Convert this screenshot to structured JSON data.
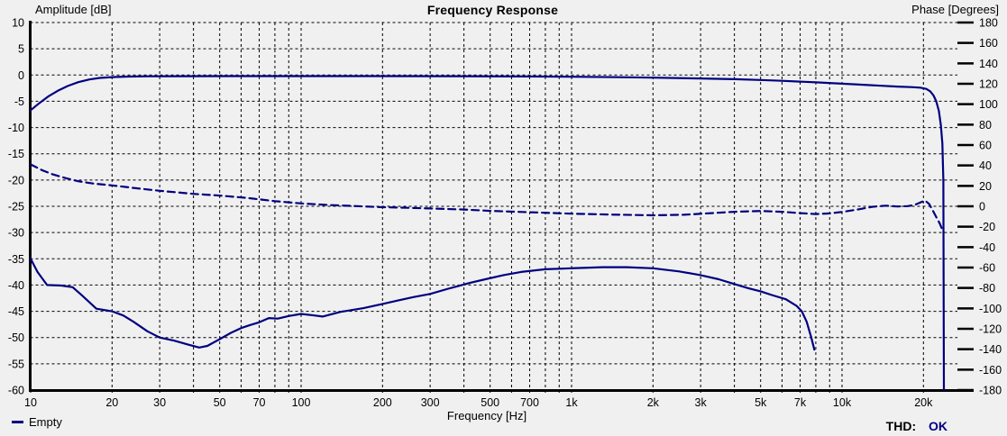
{
  "window": {
    "background": "#f0f0f0"
  },
  "chart": {
    "title": "Frequency Response",
    "colors": {
      "curve": "#000080",
      "grid": "#000000",
      "axis": "#000000",
      "text": "#000000",
      "background": "#f0f0f0"
    },
    "left_axis": {
      "title": "Amplitude [dB]",
      "ticks": [
        10,
        5,
        0,
        -5,
        -10,
        -15,
        -20,
        -25,
        -30,
        -35,
        -40,
        -45,
        -50,
        -55,
        -60
      ]
    },
    "right_axis": {
      "title": "Phase [Degrees]",
      "ticks": [
        180,
        160,
        140,
        120,
        100,
        80,
        60,
        40,
        20,
        0,
        -20,
        -40,
        -60,
        -80,
        -100,
        -120,
        -140,
        -160,
        -180
      ]
    },
    "x_axis": {
      "title": "Frequency [Hz]",
      "labeled_ticks": [
        {
          "value": 10,
          "label": "10"
        },
        {
          "value": 20,
          "label": "20"
        },
        {
          "value": 30,
          "label": "30"
        },
        {
          "value": 50,
          "label": "50"
        },
        {
          "value": 70,
          "label": "70"
        },
        {
          "value": 100,
          "label": "100"
        },
        {
          "value": 200,
          "label": "200"
        },
        {
          "value": 300,
          "label": "300"
        },
        {
          "value": 500,
          "label": "500"
        },
        {
          "value": 700,
          "label": "700"
        },
        {
          "value": 1000,
          "label": "1k"
        },
        {
          "value": 2000,
          "label": "2k"
        },
        {
          "value": 3000,
          "label": "3k"
        },
        {
          "value": 5000,
          "label": "5k"
        },
        {
          "value": 7000,
          "label": "7k"
        },
        {
          "value": 10000,
          "label": "10k"
        },
        {
          "value": 20000,
          "label": "20k"
        }
      ],
      "gridlines": [
        10,
        20,
        30,
        40,
        50,
        60,
        70,
        80,
        90,
        100,
        200,
        300,
        400,
        500,
        600,
        700,
        800,
        900,
        1000,
        2000,
        3000,
        4000,
        5000,
        6000,
        7000,
        8000,
        9000,
        10000,
        20000
      ]
    }
  },
  "legend": {
    "series_label": "Empty"
  },
  "footer": {
    "thd_label": "THD:",
    "thd_value": "OK",
    "thd_value_color": "#000080"
  },
  "chart_data": {
    "type": "line",
    "title": "Frequency Response",
    "x_scale": "log",
    "x_range": [
      10,
      26000
    ],
    "left_axis_range": [
      -60,
      10
    ],
    "right_axis_range": [
      -180,
      180
    ],
    "grid": true,
    "legend_position": "bottom-left",
    "series": [
      {
        "name": "amplitude",
        "axis": "left",
        "style": "solid",
        "unit": "dB",
        "points": [
          [
            10,
            -6.7
          ],
          [
            10.8,
            -5.3
          ],
          [
            11.6,
            -4.1
          ],
          [
            12.6,
            -3.0
          ],
          [
            13.7,
            -2.1
          ],
          [
            15,
            -1.35
          ],
          [
            16.5,
            -0.85
          ],
          [
            18,
            -0.55
          ],
          [
            20,
            -0.4
          ],
          [
            23,
            -0.3
          ],
          [
            27,
            -0.25
          ],
          [
            35,
            -0.22
          ],
          [
            60,
            -0.2
          ],
          [
            100,
            -0.2
          ],
          [
            200,
            -0.2
          ],
          [
            400,
            -0.22
          ],
          [
            700,
            -0.27
          ],
          [
            1000,
            -0.33
          ],
          [
            1500,
            -0.42
          ],
          [
            2000,
            -0.5
          ],
          [
            3000,
            -0.65
          ],
          [
            4000,
            -0.8
          ],
          [
            5000,
            -0.95
          ],
          [
            6000,
            -1.1
          ],
          [
            7000,
            -1.25
          ],
          [
            8000,
            -1.4
          ],
          [
            10000,
            -1.65
          ],
          [
            12000,
            -1.85
          ],
          [
            14000,
            -2.05
          ],
          [
            16000,
            -2.2
          ],
          [
            18000,
            -2.3
          ],
          [
            19500,
            -2.4
          ],
          [
            20500,
            -2.65
          ],
          [
            21200,
            -3.1
          ],
          [
            21800,
            -3.9
          ],
          [
            22300,
            -5.0
          ],
          [
            22800,
            -6.8
          ],
          [
            23200,
            -9.5
          ],
          [
            23500,
            -13
          ],
          [
            23700,
            -20
          ],
          [
            23800,
            -60
          ]
        ]
      },
      {
        "name": "phase",
        "axis": "right",
        "style": "dashed",
        "unit": "deg",
        "points": [
          [
            10,
            41
          ],
          [
            11,
            35.5
          ],
          [
            12,
            31.5
          ],
          [
            13.5,
            27.5
          ],
          [
            15,
            24.5
          ],
          [
            17,
            22.3
          ],
          [
            20,
            20.5
          ],
          [
            24,
            18
          ],
          [
            30,
            15.2
          ],
          [
            40,
            12.2
          ],
          [
            50,
            10.5
          ],
          [
            63,
            8.2
          ],
          [
            80,
            5
          ],
          [
            100,
            2.8
          ],
          [
            125,
            1.3
          ],
          [
            160,
            0.2
          ],
          [
            200,
            -0.9
          ],
          [
            250,
            -1.5
          ],
          [
            300,
            -2.1
          ],
          [
            400,
            -3.2
          ],
          [
            500,
            -4.5
          ],
          [
            700,
            -5.8
          ],
          [
            1000,
            -7.2
          ],
          [
            1400,
            -8.1
          ],
          [
            2000,
            -8.8
          ],
          [
            2600,
            -8.3
          ],
          [
            3200,
            -6.9
          ],
          [
            4000,
            -5.4
          ],
          [
            5000,
            -4.6
          ],
          [
            6000,
            -5.4
          ],
          [
            7000,
            -6.7
          ],
          [
            8000,
            -7.6
          ],
          [
            9000,
            -7.0
          ],
          [
            10000,
            -5.6
          ],
          [
            11500,
            -3.0
          ],
          [
            13000,
            -0.4
          ],
          [
            14500,
            0.6
          ],
          [
            16000,
            -0.2
          ],
          [
            17500,
            0.2
          ],
          [
            18500,
            1.2
          ],
          [
            19500,
            3.8
          ],
          [
            20300,
            5.6
          ],
          [
            21000,
            2.2
          ],
          [
            21700,
            -4.5
          ],
          [
            22300,
            -10.5
          ],
          [
            23000,
            -17
          ],
          [
            23600,
            -24.5
          ]
        ]
      },
      {
        "name": "thd",
        "axis": "left",
        "style": "solid",
        "unit": "dB",
        "points": [
          [
            10,
            -35
          ],
          [
            10.6,
            -37.5
          ],
          [
            11.5,
            -40
          ],
          [
            13,
            -40.1
          ],
          [
            14.3,
            -40.4
          ],
          [
            15.5,
            -42
          ],
          [
            17.5,
            -44.5
          ],
          [
            20,
            -45
          ],
          [
            22,
            -45.8
          ],
          [
            24,
            -47
          ],
          [
            27,
            -48.8
          ],
          [
            30,
            -50
          ],
          [
            34,
            -50.6
          ],
          [
            38,
            -51.3
          ],
          [
            42,
            -51.9
          ],
          [
            45,
            -51.6
          ],
          [
            50,
            -50.3
          ],
          [
            55,
            -49.1
          ],
          [
            60,
            -48.2
          ],
          [
            65,
            -47.6
          ],
          [
            70,
            -47.1
          ],
          [
            76,
            -46.3
          ],
          [
            82,
            -46.4
          ],
          [
            90,
            -45.9
          ],
          [
            100,
            -45.5
          ],
          [
            112,
            -45.8
          ],
          [
            120,
            -46.0
          ],
          [
            140,
            -45.1
          ],
          [
            170,
            -44.4
          ],
          [
            200,
            -43.6
          ],
          [
            230,
            -42.9
          ],
          [
            260,
            -42.3
          ],
          [
            300,
            -41.7
          ],
          [
            350,
            -40.7
          ],
          [
            420,
            -39.6
          ],
          [
            480,
            -38.9
          ],
          [
            560,
            -38.1
          ],
          [
            650,
            -37.5
          ],
          [
            800,
            -37.0
          ],
          [
            1000,
            -36.8
          ],
          [
            1300,
            -36.6
          ],
          [
            1600,
            -36.6
          ],
          [
            2000,
            -36.8
          ],
          [
            2500,
            -37.4
          ],
          [
            3000,
            -38.1
          ],
          [
            3500,
            -38.9
          ],
          [
            4000,
            -39.8
          ],
          [
            4500,
            -40.6
          ],
          [
            5000,
            -41.2
          ],
          [
            5500,
            -41.9
          ],
          [
            6200,
            -42.7
          ],
          [
            6800,
            -44.0
          ],
          [
            7100,
            -45.0
          ],
          [
            7400,
            -47.0
          ],
          [
            7700,
            -50.0
          ],
          [
            7900,
            -52.3
          ]
        ]
      }
    ]
  }
}
